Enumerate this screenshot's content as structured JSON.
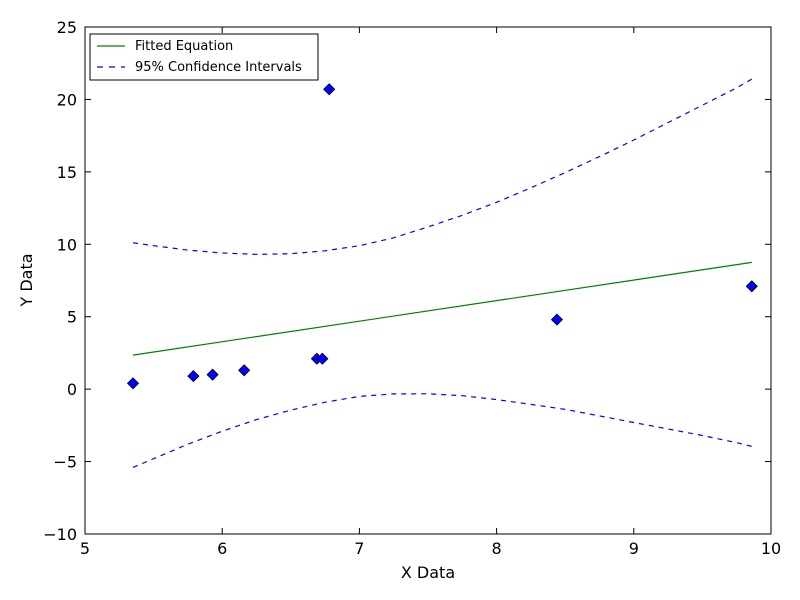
{
  "chart_data": {
    "type": "scatter",
    "xlabel": "X Data",
    "ylabel": "Y Data",
    "xlim": [
      5,
      10
    ],
    "ylim": [
      -10,
      25
    ],
    "xticks": [
      5,
      6,
      7,
      8,
      9,
      10
    ],
    "yticks": [
      -10,
      -5,
      0,
      5,
      10,
      15,
      20,
      25
    ],
    "xtick_labels": [
      "5",
      "6",
      "7",
      "8",
      "9",
      "10"
    ],
    "ytick_labels": [
      "−10",
      "−5",
      "0",
      "5",
      "10",
      "15",
      "20",
      "25"
    ],
    "grid": false,
    "legend_position": "top-left",
    "data_points": {
      "marker": "diamond",
      "color": "#0000ff",
      "x": [
        5.35,
        5.79,
        5.93,
        6.16,
        6.69,
        6.73,
        6.78,
        8.44,
        9.86
      ],
      "y": [
        0.4,
        0.9,
        1.0,
        1.3,
        2.1,
        2.1,
        20.7,
        4.8,
        7.1
      ]
    },
    "series": [
      {
        "name": "Fitted Equation",
        "style": "solid",
        "color": "#008000",
        "x": [
          5.35,
          9.86
        ],
        "y": [
          2.35,
          8.75
        ]
      },
      {
        "name": "95% Confidence Intervals",
        "style": "dashed",
        "color": "#0000ff",
        "x": [
          5.35,
          5.5,
          5.75,
          6.0,
          6.25,
          6.5,
          6.75,
          7.0,
          7.25,
          7.5,
          7.75,
          8.0,
          8.25,
          8.5,
          8.75,
          9.0,
          9.25,
          9.5,
          9.75,
          9.86
        ],
        "y": [
          10.1,
          9.9,
          9.6,
          9.4,
          9.3,
          9.35,
          9.55,
          9.9,
          10.45,
          11.2,
          12.0,
          12.9,
          13.9,
          14.95,
          16.05,
          17.2,
          18.4,
          19.6,
          20.8,
          21.4
        ]
      },
      {
        "name": "",
        "style": "dashed",
        "color": "#0000ff",
        "x": [
          5.35,
          5.5,
          5.75,
          6.0,
          6.25,
          6.5,
          6.75,
          7.0,
          7.25,
          7.5,
          7.75,
          8.0,
          8.25,
          8.5,
          8.75,
          9.0,
          9.25,
          9.5,
          9.75,
          9.86
        ],
        "y": [
          -5.4,
          -4.8,
          -3.8,
          -2.9,
          -2.1,
          -1.45,
          -0.9,
          -0.5,
          -0.33,
          -0.32,
          -0.45,
          -0.72,
          -1.05,
          -1.4,
          -1.85,
          -2.3,
          -2.75,
          -3.2,
          -3.7,
          -3.95
        ]
      }
    ]
  }
}
